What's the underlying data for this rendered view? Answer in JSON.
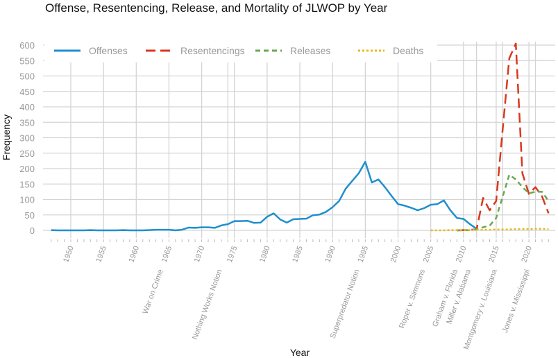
{
  "chart_data": {
    "type": "line",
    "title": "Offense, Resentencing, Release, and Mortality of JLWOP by Year",
    "xlabel": "Year",
    "ylabel": "Frequency",
    "ylim": [
      0,
      600
    ],
    "xlim": [
      1946,
      2024
    ],
    "grid": true,
    "legend_position": "top-left",
    "y_ticks": [
      0,
      50,
      100,
      150,
      200,
      250,
      300,
      350,
      400,
      450,
      500,
      550,
      600
    ],
    "x_ticks": [
      1950,
      1955,
      1960,
      1965,
      1970,
      1975,
      1980,
      1985,
      1990,
      1995,
      2000,
      2005,
      2010,
      2015,
      2020
    ],
    "annotations": [
      {
        "year": 1965,
        "label": "War on Crime"
      },
      {
        "year": 1974,
        "label": "Nothing Works Notion"
      },
      {
        "year": 1995,
        "label": "Superpredator Notion"
      },
      {
        "year": 2005,
        "label": "Roper v. Simmons"
      },
      {
        "year": 2010,
        "label": "Graham v. Florida"
      },
      {
        "year": 2012,
        "label": "Miller v. Alabama"
      },
      {
        "year": 2016,
        "label": "Montgomery v. Louisiana"
      },
      {
        "year": 2021,
        "label": "Jones v. Mississippi"
      }
    ],
    "series": [
      {
        "name": "Offenses",
        "color": "#1f8fcf",
        "dash": "solid",
        "x": [
          1947,
          1948,
          1949,
          1950,
          1951,
          1952,
          1953,
          1954,
          1955,
          1956,
          1957,
          1958,
          1959,
          1960,
          1961,
          1962,
          1963,
          1964,
          1965,
          1966,
          1967,
          1968,
          1969,
          1970,
          1971,
          1972,
          1973,
          1974,
          1975,
          1976,
          1977,
          1978,
          1979,
          1980,
          1981,
          1982,
          1983,
          1984,
          1985,
          1986,
          1987,
          1988,
          1989,
          1990,
          1991,
          1992,
          1993,
          1994,
          1995,
          1996,
          1997,
          1998,
          1999,
          2000,
          2001,
          2002,
          2003,
          2004,
          2005,
          2006,
          2007,
          2008,
          2009,
          2010,
          2011,
          2012
        ],
        "values": [
          1,
          0,
          0,
          0,
          0,
          0,
          1,
          0,
          0,
          0,
          0,
          1,
          0,
          0,
          0,
          1,
          2,
          2,
          2,
          0,
          2,
          9,
          8,
          10,
          10,
          8,
          16,
          20,
          30,
          30,
          31,
          24,
          25,
          44,
          55,
          35,
          25,
          36,
          37,
          38,
          49,
          51,
          60,
          75,
          95,
          135,
          160,
          185,
          222,
          155,
          165,
          140,
          112,
          85,
          80,
          73,
          65,
          72,
          83,
          85,
          97,
          65,
          40,
          37,
          20,
          5
        ]
      },
      {
        "name": "Resentencings",
        "color": "#d9381e",
        "dash": "long",
        "x": [
          2009,
          2010,
          2011,
          2012,
          2013,
          2014,
          2015,
          2016,
          2017,
          2018,
          2019,
          2020,
          2021,
          2022,
          2023
        ],
        "values": [
          0,
          1,
          2,
          3,
          105,
          65,
          95,
          330,
          557,
          605,
          185,
          118,
          140,
          110,
          55
        ]
      },
      {
        "name": "Releases",
        "color": "#6aa84f",
        "dash": "medium",
        "x": [
          2009,
          2010,
          2011,
          2012,
          2013,
          2014,
          2015,
          2016,
          2017,
          2018,
          2019,
          2020,
          2021,
          2022,
          2023
        ],
        "values": [
          0,
          0,
          1,
          4,
          10,
          15,
          40,
          110,
          180,
          165,
          140,
          120,
          125,
          125,
          95
        ]
      },
      {
        "name": "Deaths",
        "color": "#e8b923",
        "dash": "dotted",
        "x": [
          2005,
          2006,
          2007,
          2008,
          2009,
          2010,
          2011,
          2012,
          2013,
          2014,
          2015,
          2016,
          2017,
          2018,
          2019,
          2020,
          2021,
          2022,
          2023
        ],
        "values": [
          0,
          0,
          0,
          1,
          1,
          1,
          1,
          2,
          2,
          2,
          3,
          3,
          3,
          4,
          4,
          4,
          5,
          5,
          4
        ]
      }
    ]
  }
}
